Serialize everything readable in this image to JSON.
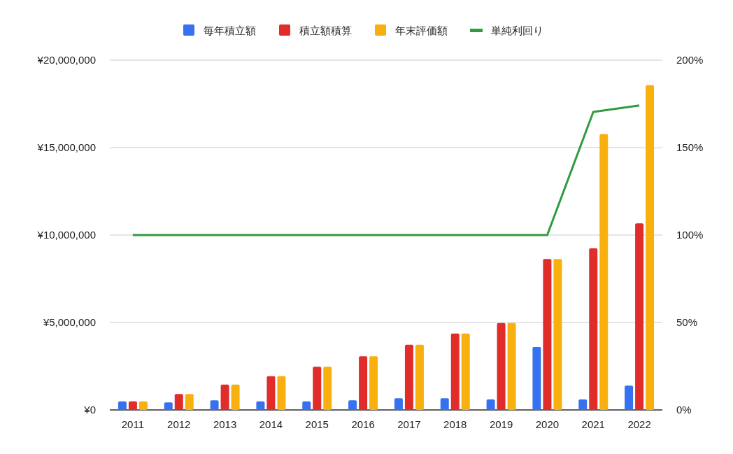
{
  "chart_data": {
    "type": "bar",
    "categories": [
      "2011",
      "2012",
      "2013",
      "2014",
      "2015",
      "2016",
      "2017",
      "2018",
      "2019",
      "2020",
      "2021",
      "2022"
    ],
    "series": [
      {
        "name": "毎年積立額",
        "color": "#3671f0",
        "values": [
          490000,
          430000,
          550000,
          490000,
          490000,
          550000,
          670000,
          670000,
          600000,
          3600000,
          600000,
          1390000
        ]
      },
      {
        "name": "積立額積算",
        "color": "#e02d2a",
        "values": [
          490000,
          910000,
          1450000,
          1930000,
          2470000,
          3070000,
          3730000,
          4370000,
          4970000,
          8630000,
          9240000,
          10670000
        ]
      },
      {
        "name": "年末評価額",
        "color": "#f8b00f",
        "values": [
          490000,
          910000,
          1450000,
          1930000,
          2470000,
          3070000,
          3730000,
          4370000,
          4970000,
          8630000,
          15770000,
          18570000
        ]
      },
      {
        "name": "単純利回り",
        "color": "#2e9c3f",
        "type": "line",
        "axis": "y2",
        "values": [
          100,
          100,
          100,
          100,
          100,
          100,
          100,
          100,
          100,
          100,
          170.4,
          174.1
        ]
      }
    ],
    "ylim": [
      0,
      20000000
    ],
    "yticks": [
      {
        "value": 0,
        "label": "¥0"
      },
      {
        "value": 5000000,
        "label": "¥5,000,000"
      },
      {
        "value": 10000000,
        "label": "¥10,000,000"
      },
      {
        "value": 15000000,
        "label": "¥15,000,000"
      },
      {
        "value": 20000000,
        "label": "¥20,000,000"
      }
    ],
    "y2lim": [
      0,
      200
    ],
    "y2ticks": [
      {
        "value": 0,
        "label": "0%"
      },
      {
        "value": 50,
        "label": "50%"
      },
      {
        "value": 100,
        "label": "100%"
      },
      {
        "value": 150,
        "label": "150%"
      },
      {
        "value": 200,
        "label": "200%"
      }
    ],
    "grid": "y",
    "legend": "top"
  }
}
